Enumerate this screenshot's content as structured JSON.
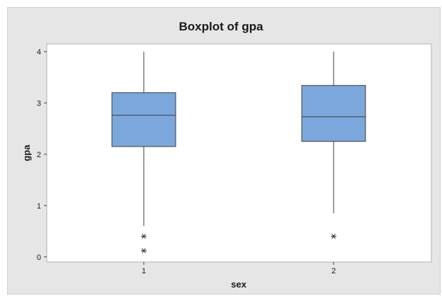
{
  "chart_data": {
    "type": "boxplot",
    "title": "Boxplot of gpa",
    "xlabel": "sex",
    "ylabel": "gpa",
    "ylim": [
      -0.1,
      4.15
    ],
    "yticks": [
      0,
      1,
      2,
      3,
      4
    ],
    "categories": [
      "1",
      "2"
    ],
    "grid": false,
    "box_color": "#7ba7dc",
    "box_edge_color": "#3d3d3d",
    "boxes": [
      {
        "category": "1",
        "min": 0.6,
        "q1": 2.15,
        "median": 2.76,
        "q3": 3.2,
        "max": 4.0,
        "outliers": [
          0.4,
          0.12
        ]
      },
      {
        "category": "2",
        "min": 0.85,
        "q1": 2.25,
        "median": 2.73,
        "q3": 3.34,
        "max": 4.0,
        "outliers": [
          0.4
        ]
      }
    ]
  }
}
